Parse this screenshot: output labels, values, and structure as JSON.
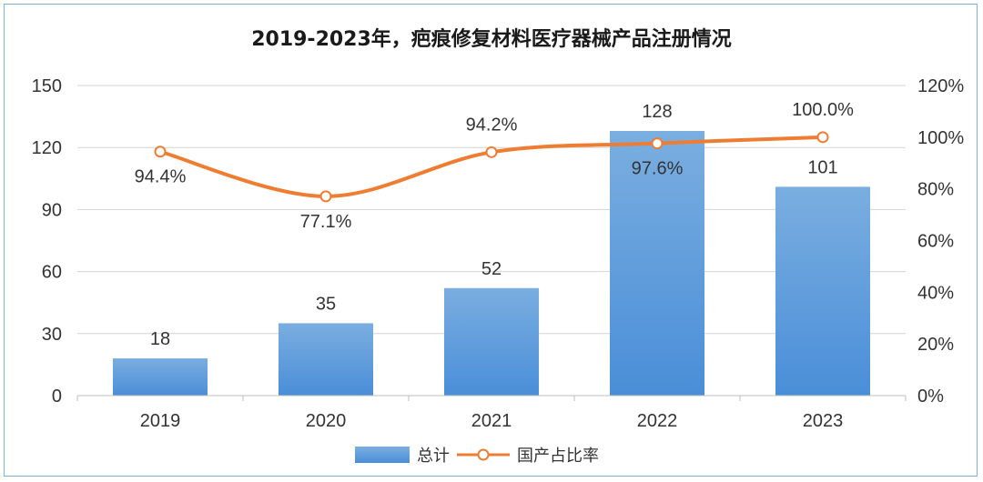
{
  "chart_data": {
    "type": "bar",
    "title": "2019-2023年，疤痕修复材料医疗器械产品注册情况",
    "categories": [
      "2019",
      "2020",
      "2021",
      "2022",
      "2023"
    ],
    "series": [
      {
        "name": "总计",
        "type": "bar",
        "axis": "left",
        "values": [
          18,
          35,
          52,
          128,
          101
        ],
        "labels": [
          "18",
          "35",
          "52",
          "128",
          "101"
        ]
      },
      {
        "name": "国产占比率",
        "type": "line",
        "axis": "right",
        "values": [
          94.4,
          77.1,
          94.2,
          97.6,
          100.0
        ],
        "labels": [
          "94.4%",
          "77.1%",
          "94.2%",
          "97.6%",
          "100.0%"
        ]
      }
    ],
    "y_left": {
      "ylim": [
        0,
        150
      ],
      "ticks": [
        "0",
        "30",
        "60",
        "90",
        "120",
        "150"
      ]
    },
    "y_right": {
      "ylim": [
        0,
        120
      ],
      "ticks": [
        "0%",
        "20%",
        "40%",
        "60%",
        "80%",
        "100%",
        "120%"
      ]
    },
    "grid": true,
    "legend_position": "bottom",
    "colors": {
      "bar_top": "#7aaee0",
      "bar_bottom": "#4a8ed8",
      "line": "#ee7d31",
      "marker_fill": "#ffffff"
    }
  }
}
